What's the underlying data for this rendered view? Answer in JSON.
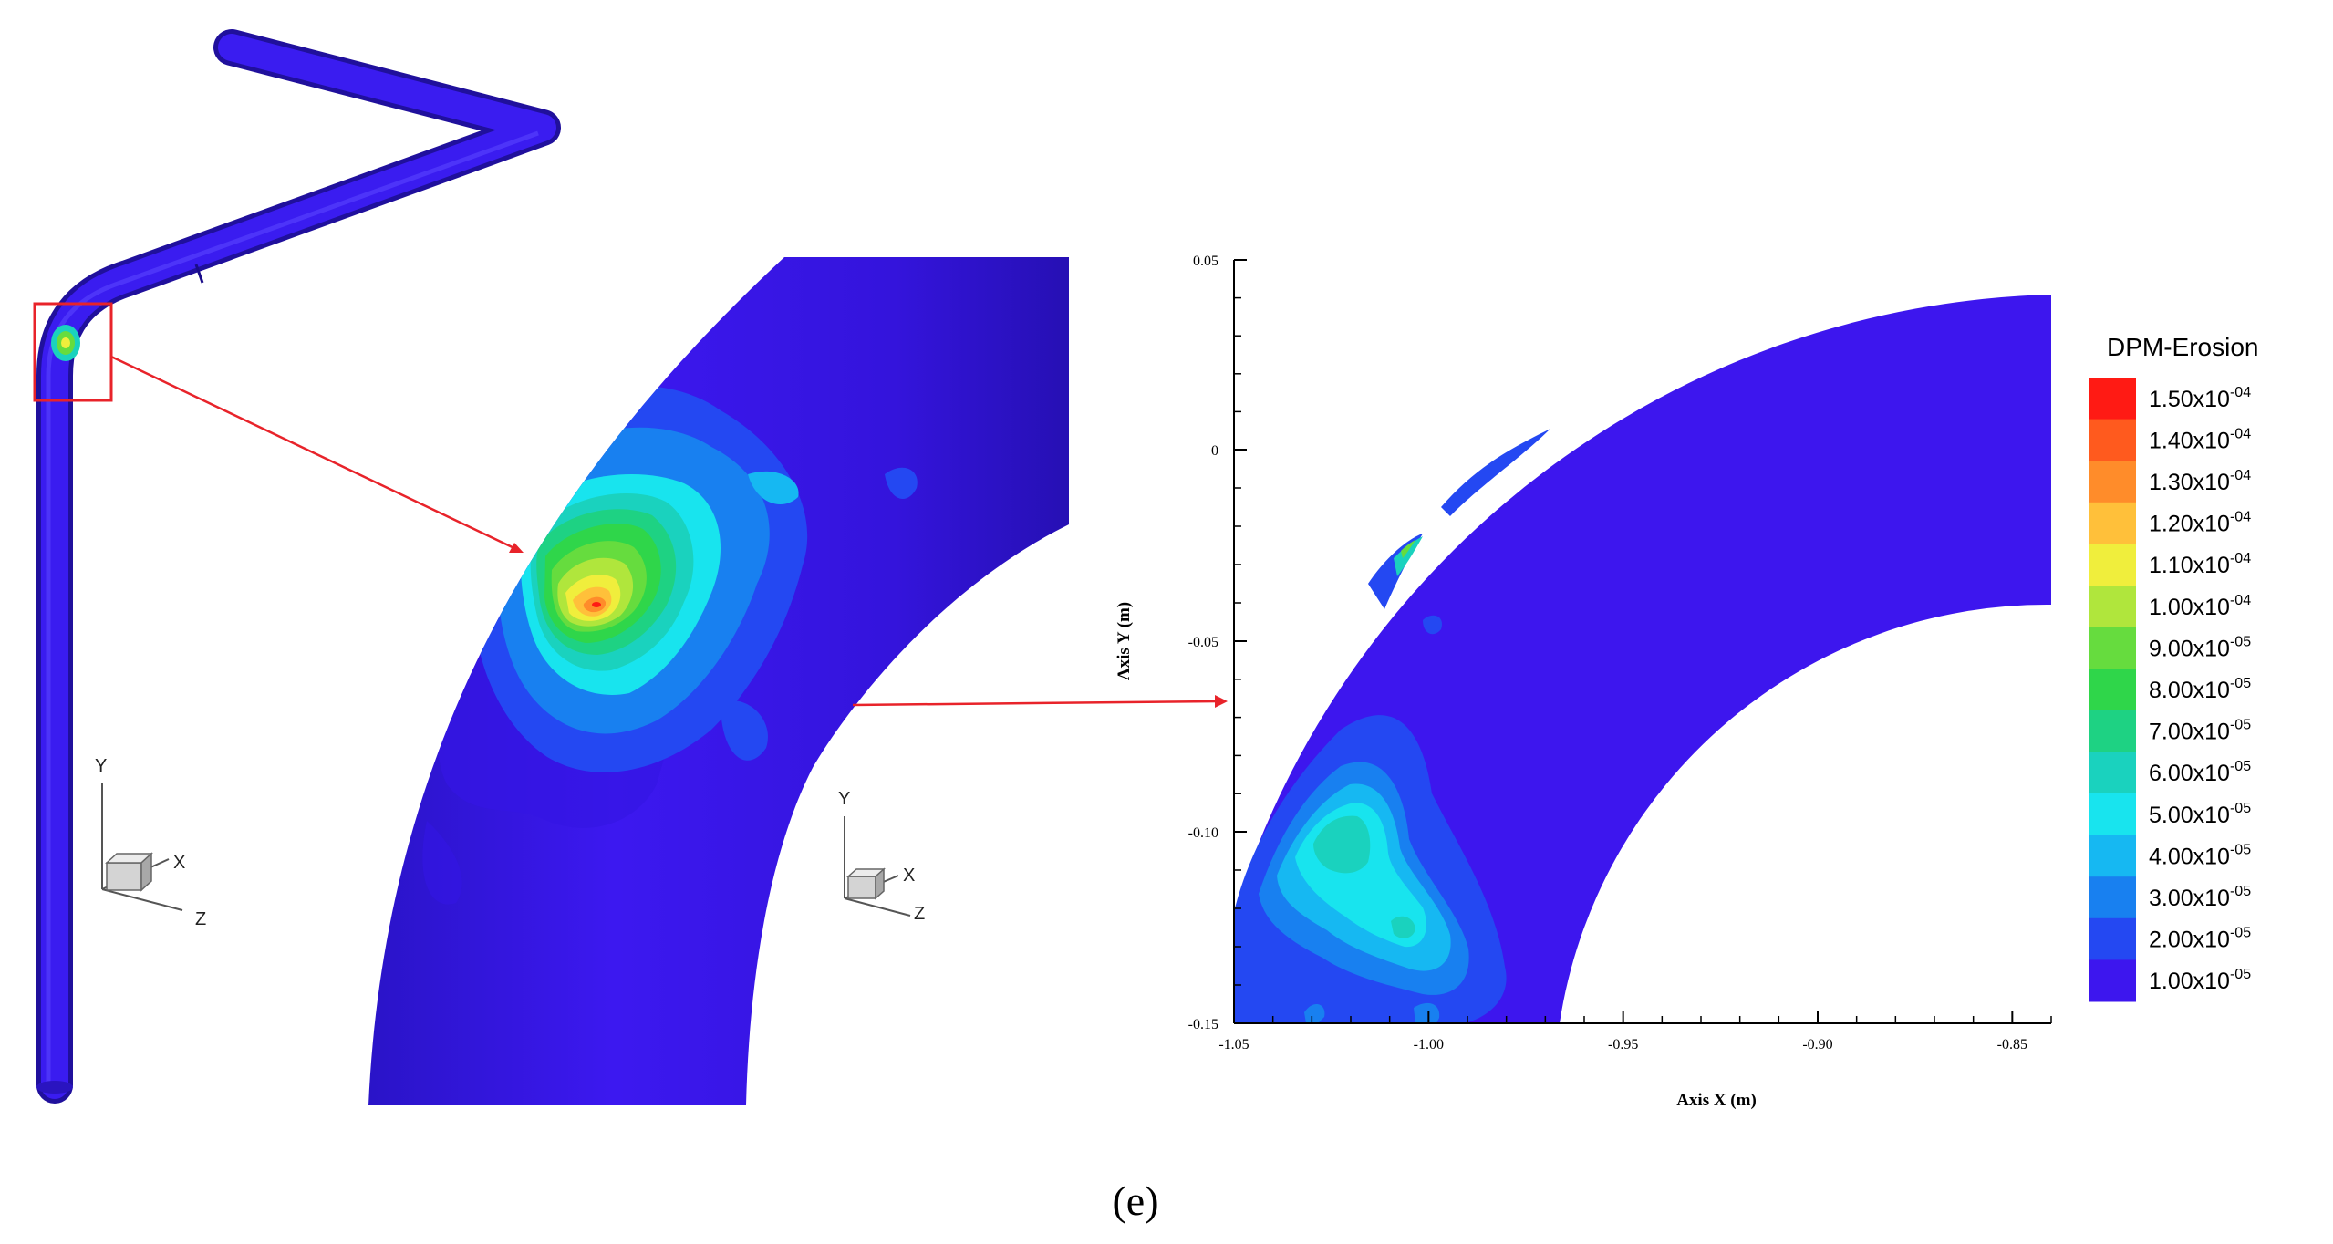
{
  "caption": "(e)",
  "triad": {
    "y": "Y",
    "x": "X",
    "z": "Z"
  },
  "legend": {
    "title": "DPM-Erosion",
    "levels": [
      {
        "mant": "1.50x10",
        "exp": "-04",
        "color": "#ff1a14"
      },
      {
        "mant": "1.40x10",
        "exp": "-04",
        "color": "#ff5a1e"
      },
      {
        "mant": "1.30x10",
        "exp": "-04",
        "color": "#ff8c2a"
      },
      {
        "mant": "1.20x10",
        "exp": "-04",
        "color": "#ffc03a"
      },
      {
        "mant": "1.10x10",
        "exp": "-04",
        "color": "#f0ee3c"
      },
      {
        "mant": "1.00x10",
        "exp": "-04",
        "color": "#b0e63c"
      },
      {
        "mant": "9.00x10",
        "exp": "-05",
        "color": "#66dc3e"
      },
      {
        "mant": "8.00x10",
        "exp": "-05",
        "color": "#2fd64a"
      },
      {
        "mant": "7.00x10",
        "exp": "-05",
        "color": "#1ed283"
      },
      {
        "mant": "6.00x10",
        "exp": "-05",
        "color": "#1ad2be"
      },
      {
        "mant": "5.00x10",
        "exp": "-05",
        "color": "#18e4ee"
      },
      {
        "mant": "4.00x10",
        "exp": "-05",
        "color": "#16b8f2"
      },
      {
        "mant": "3.00x10",
        "exp": "-05",
        "color": "#1880f0"
      },
      {
        "mant": "2.00x10",
        "exp": "-05",
        "color": "#2448f2"
      },
      {
        "mant": "1.00x10",
        "exp": "-05",
        "color": "#3d16ee"
      }
    ]
  },
  "plot": {
    "xlabel": "Axis X (m)",
    "ylabel": "Axis Y (m)",
    "xticks": [
      "-1.05",
      "-1.00",
      "-0.95",
      "-0.90",
      "-0.85"
    ],
    "yticks": [
      "0.05",
      "0",
      "-0.05",
      "-0.10",
      "-0.15"
    ]
  }
}
